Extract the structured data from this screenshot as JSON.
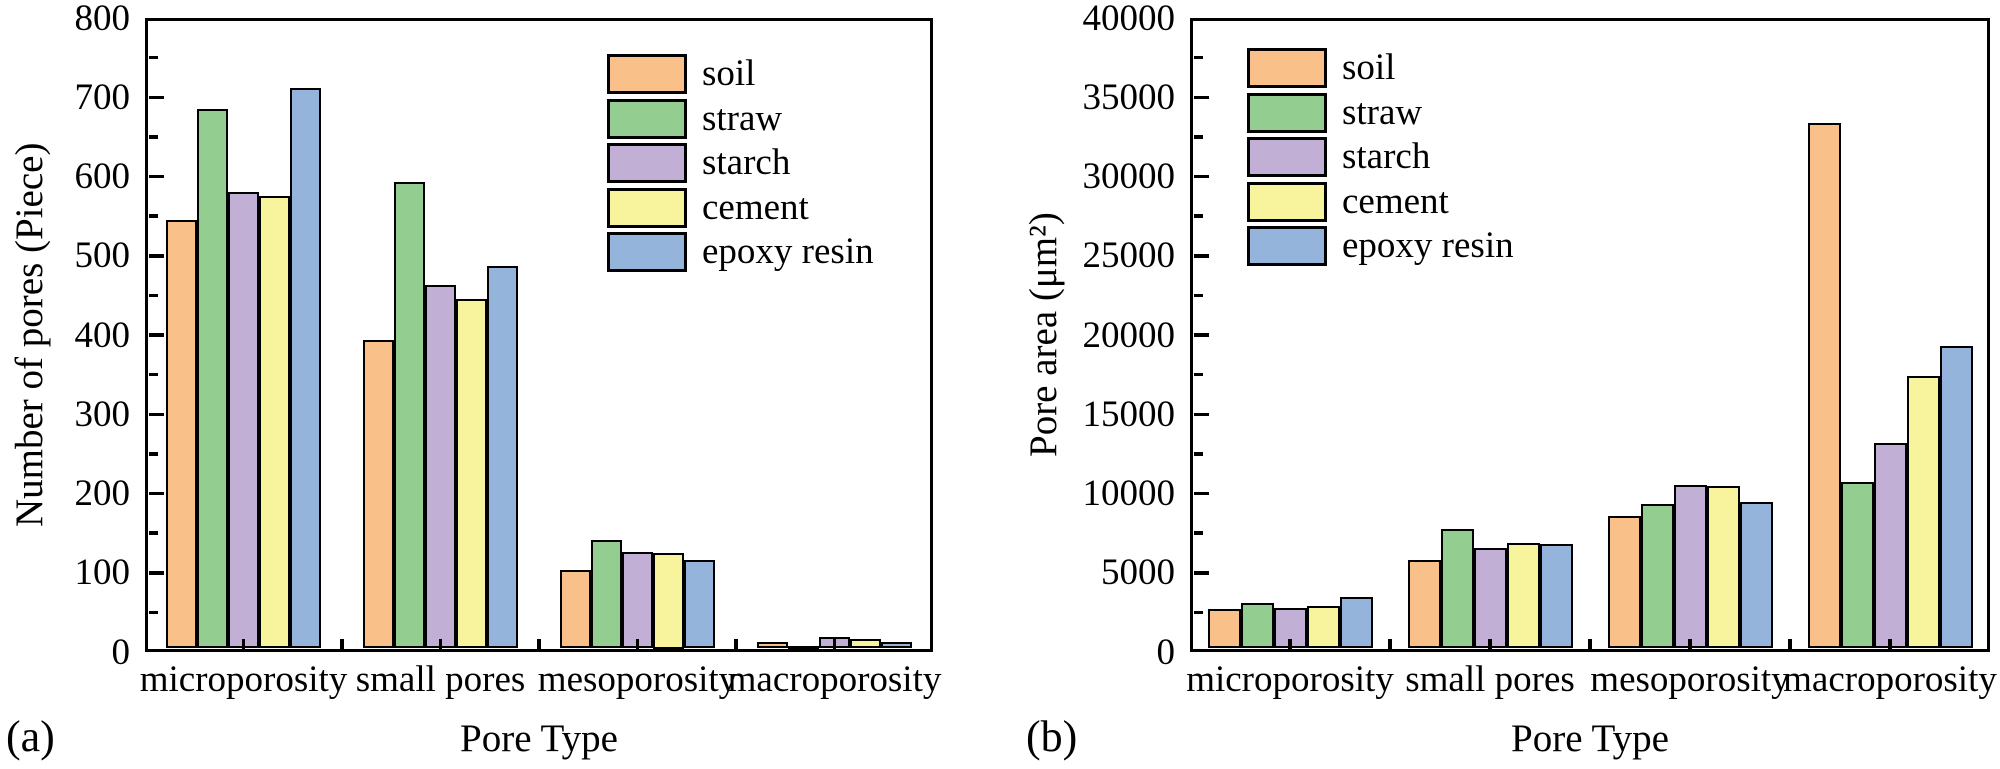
{
  "figure": {
    "background": "#ffffff",
    "axis_color": "#000000"
  },
  "chart_data": [
    {
      "id": "a",
      "type": "bar",
      "panel_label": "(a)",
      "title": "",
      "xlabel": "Pore Type",
      "ylabel": "Number of pores (Piece)",
      "categories": [
        "microporosity",
        "small pores",
        "mesoporosity",
        "macroporosity"
      ],
      "series": [
        {
          "name": "soil",
          "color": "#F9C189",
          "values": [
            545,
            394,
            104,
            13
          ]
        },
        {
          "name": "straw",
          "color": "#94CD90",
          "values": [
            685,
            593,
            141,
            8
          ]
        },
        {
          "name": "starch",
          "color": "#C1AFD5",
          "values": [
            580,
            463,
            126,
            19
          ]
        },
        {
          "name": "cement",
          "color": "#F8F49E",
          "values": [
            576,
            446,
            125,
            17
          ]
        },
        {
          "name": "epoxy resin",
          "color": "#95B4DC",
          "values": [
            712,
            487,
            116,
            13
          ]
        }
      ],
      "ylim": [
        0,
        800
      ],
      "ytick_major": 100,
      "ytick_minor": 50,
      "grid": false,
      "legend_position": "upper-center"
    },
    {
      "id": "b",
      "type": "bar",
      "panel_label": "(b)",
      "title": "",
      "xlabel": "Pore Type",
      "ylabel": "Pore area (μm²)",
      "categories": [
        "microporosity",
        "small pores",
        "mesoporosity",
        "macroporosity"
      ],
      "series": [
        {
          "name": "soil",
          "color": "#F9C189",
          "values": [
            2700,
            5800,
            8600,
            33400
          ]
        },
        {
          "name": "straw",
          "color": "#94CD90",
          "values": [
            3100,
            7750,
            9350,
            10700
          ]
        },
        {
          "name": "starch",
          "color": "#C1AFD5",
          "values": [
            2800,
            6550,
            10550,
            13200
          ]
        },
        {
          "name": "cement",
          "color": "#F8F49E",
          "values": [
            2900,
            6900,
            10500,
            17400
          ]
        },
        {
          "name": "epoxy resin",
          "color": "#95B4DC",
          "values": [
            3450,
            6800,
            9450,
            19300
          ]
        }
      ],
      "ylim": [
        0,
        40000
      ],
      "ytick_major": 5000,
      "ytick_minor": 2500,
      "grid": false,
      "legend_position": "upper-left"
    }
  ]
}
